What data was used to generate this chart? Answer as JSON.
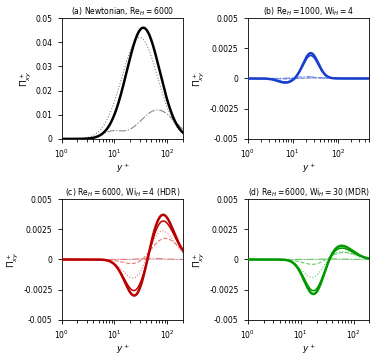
{
  "panels": [
    {
      "label": "(a) Newtonian, $\\mathrm{Re}_{H} = 6000$",
      "color_dark": "black",
      "color_light": "#888888",
      "ylim": [
        0,
        0.05
      ],
      "yticks": [
        0,
        0.01,
        0.02,
        0.03,
        0.04,
        0.05
      ],
      "xlim": [
        1,
        200
      ]
    },
    {
      "label": "(b) $\\mathrm{Re}_{H} = 1000$, $\\mathrm{Wi}_{H} = 4$",
      "color_dark": "#1a3fcc",
      "color_light": "#6688ee",
      "ylim": [
        -0.005,
        0.005
      ],
      "yticks": [
        -0.005,
        -0.0025,
        0,
        0.0025,
        0.005
      ],
      "xlim": [
        1,
        500
      ]
    },
    {
      "label": "(c) $\\mathrm{Re}_{H} = 6000$, $\\mathrm{Wi}_{H} = 4$ (HDR)",
      "color_dark": "#bb0000",
      "color_light": "#ee7777",
      "ylim": [
        -0.005,
        0.005
      ],
      "yticks": [
        -0.005,
        -0.0025,
        0,
        0.0025,
        0.005
      ],
      "xlim": [
        1,
        200
      ]
    },
    {
      "label": "(d) $\\mathrm{Re}_{H} = 6000$, $\\mathrm{Wi}_{H} = 30$ (MDR)",
      "color_dark": "#009900",
      "color_light": "#66cc66",
      "ylim": [
        -0.005,
        0.005
      ],
      "yticks": [
        -0.005,
        -0.0025,
        0,
        0.0025,
        0.005
      ],
      "xlim": [
        1,
        200
      ]
    }
  ],
  "ylabel": "$\\Pi^+_{xy}$",
  "xlabel": "$y^+$",
  "background": "#ffffff"
}
